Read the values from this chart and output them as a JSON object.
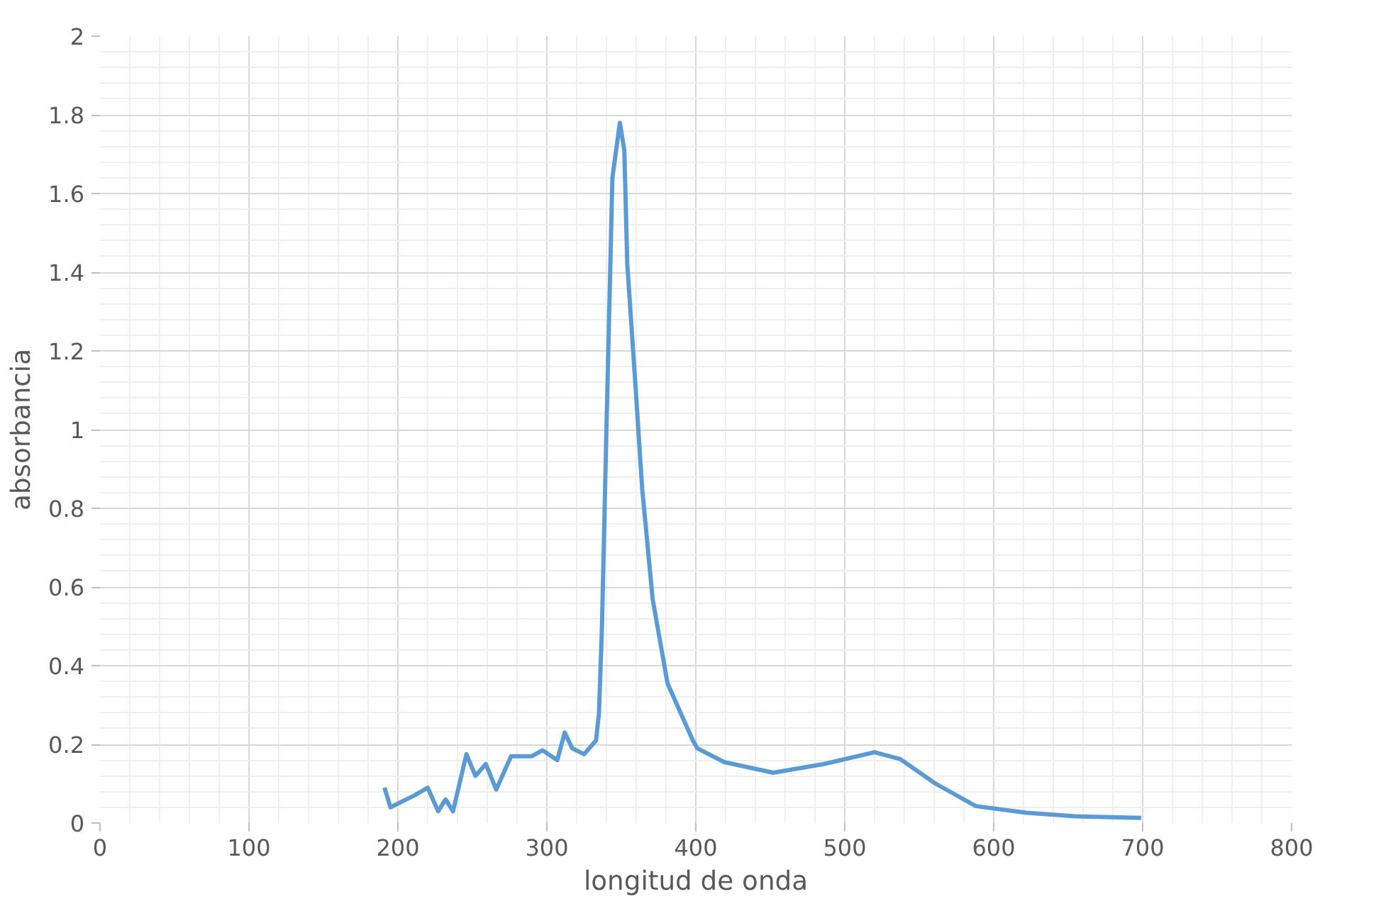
{
  "chart_data": {
    "type": "line",
    "xlabel": "longitud de onda",
    "ylabel": "absorbancia",
    "x": [
      191,
      195,
      211,
      220,
      227,
      232,
      237,
      246,
      252,
      259,
      266,
      276,
      290,
      297,
      307,
      312,
      317,
      325,
      333,
      335,
      337,
      340,
      344,
      349,
      352,
      354,
      359,
      364,
      371,
      381,
      398,
      401,
      419,
      452,
      486,
      520,
      537,
      561,
      588,
      622,
      655,
      699
    ],
    "series": [
      {
        "color": "#5b9bd5",
        "values": [
          0.09,
          0.04,
          0.07,
          0.09,
          0.03,
          0.06,
          0.03,
          0.175,
          0.12,
          0.15,
          0.085,
          0.17,
          0.17,
          0.185,
          0.16,
          0.23,
          0.19,
          0.175,
          0.21,
          0.28,
          0.5,
          1.0,
          1.64,
          1.78,
          1.71,
          1.42,
          1.14,
          0.85,
          0.57,
          0.355,
          0.21,
          0.19,
          0.155,
          0.128,
          0.15,
          0.18,
          0.163,
          0.1,
          0.043,
          0.026,
          0.017,
          0.013
        ]
      }
    ],
    "xlim": [
      0,
      800
    ],
    "ylim": [
      0,
      2
    ],
    "xticks": [
      0,
      100,
      200,
      300,
      400,
      500,
      600,
      700,
      800
    ],
    "yticks": [
      0,
      0.2,
      0.4,
      0.6,
      0.8,
      1,
      1.2,
      1.4,
      1.6,
      1.8,
      2
    ],
    "grid": true,
    "marker": "none",
    "line_style": "solid"
  }
}
